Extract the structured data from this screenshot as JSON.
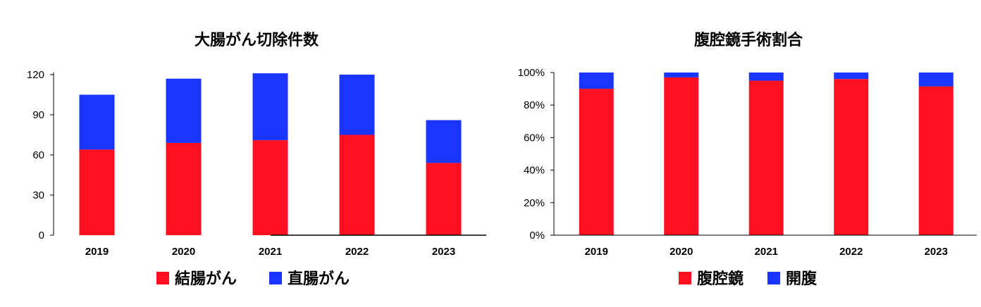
{
  "chart_data": [
    {
      "type": "bar",
      "stacked": true,
      "title": "大腸がん切除件数",
      "categories": [
        "2019",
        "2020",
        "2021",
        "2022",
        "2023"
      ],
      "series": [
        {
          "name": "結腸がん",
          "color": "#ff1020",
          "values": [
            64,
            69,
            71,
            75,
            54
          ]
        },
        {
          "name": "直腸がん",
          "color": "#1a35ff",
          "values": [
            41,
            48,
            50,
            45,
            32
          ]
        }
      ],
      "ylim": [
        0,
        130
      ],
      "yticks": [
        0,
        30,
        60,
        90,
        120
      ],
      "ytick_labels": [
        "0",
        "30",
        "60",
        "90",
        "120"
      ],
      "legend": "bottom",
      "grid": false
    },
    {
      "type": "bar",
      "stacked": true,
      "title": "腹腔鏡手術割合",
      "categories": [
        "2019",
        "2020",
        "2021",
        "2022",
        "2023"
      ],
      "series": [
        {
          "name": "腹腔鏡",
          "color": "#ff1020",
          "values": [
            90,
            97,
            95,
            96,
            91.5
          ]
        },
        {
          "name": "開腹",
          "color": "#1a35ff",
          "values": [
            10,
            3,
            5,
            4,
            8.5
          ]
        }
      ],
      "ylim": [
        0,
        100
      ],
      "yticks": [
        0,
        20,
        40,
        60,
        80,
        100
      ],
      "ytick_labels": [
        "0%",
        "20%",
        "40%",
        "60%",
        "80%",
        "100%"
      ],
      "legend": "bottom",
      "grid": false
    }
  ]
}
